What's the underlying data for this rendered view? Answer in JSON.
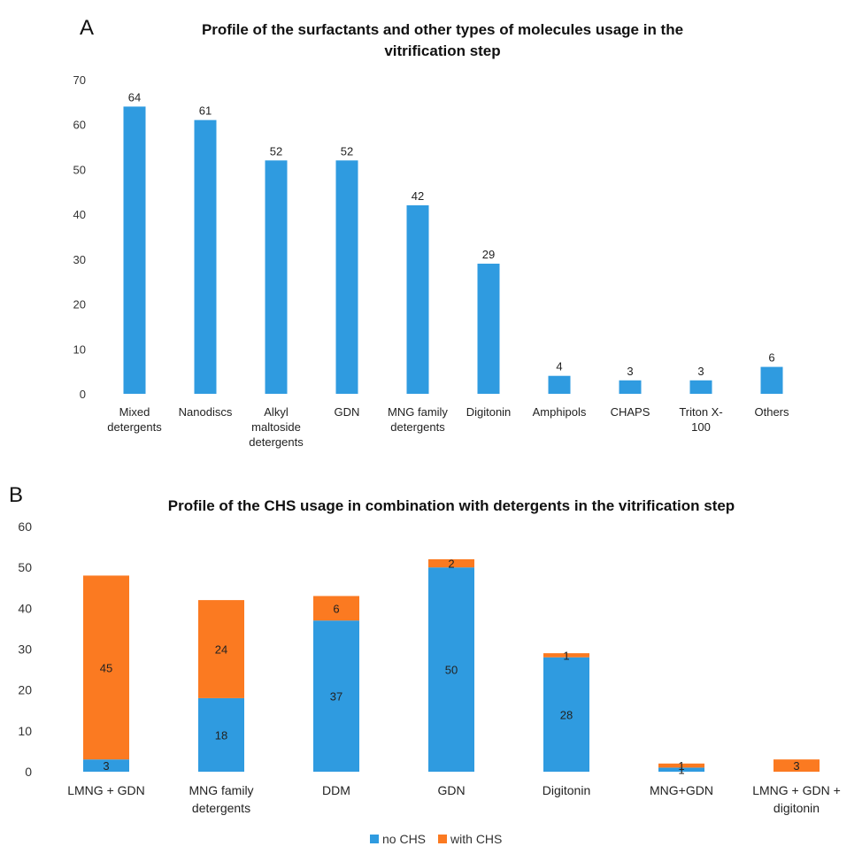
{
  "panels": {
    "a": "A",
    "b": "B"
  },
  "chart_data": [
    {
      "type": "bar",
      "title": "Profile of the surfactants and other types of molecules usage in the vitrification step",
      "title_lines": [
        "Profile of the surfactants and other types of molecules usage in the",
        "vitrification step"
      ],
      "categories": [
        [
          "Mixed",
          "detergents"
        ],
        [
          "Nanodiscs"
        ],
        [
          "Alkyl",
          "maltoside",
          "detergents"
        ],
        [
          "GDN"
        ],
        [
          "MNG family",
          "detergents"
        ],
        [
          "Digitonin"
        ],
        [
          "Amphipols"
        ],
        [
          "CHAPS"
        ],
        [
          "Triton X-",
          "100"
        ],
        [
          "Others"
        ]
      ],
      "values": [
        64,
        61,
        52,
        52,
        42,
        29,
        4,
        3,
        3,
        6
      ],
      "ylim": [
        0,
        70
      ],
      "yticks": [
        0,
        10,
        20,
        30,
        40,
        50,
        60,
        70
      ],
      "grid": false,
      "color": "#2f9be0"
    },
    {
      "type": "bar",
      "stacked": true,
      "title": "Profile of the CHS usage in combination with detergents in the vitrification step",
      "categories": [
        [
          "LMNG + GDN"
        ],
        [
          "MNG family",
          "detergents"
        ],
        [
          "DDM"
        ],
        [
          "GDN"
        ],
        [
          "Digitonin"
        ],
        [
          "MNG+GDN"
        ],
        [
          "LMNG + GDN +",
          "digitonin"
        ]
      ],
      "series": [
        {
          "name": "no CHS",
          "values": [
            3,
            18,
            37,
            50,
            28,
            1,
            0
          ],
          "labels": [
            "3",
            "18",
            "37",
            "50",
            "28",
            "1",
            ""
          ],
          "color": "#2f9be0"
        },
        {
          "name": "with CHS",
          "values": [
            45,
            24,
            6,
            2,
            1,
            1,
            3
          ],
          "labels": [
            "45",
            "24",
            "6",
            "2",
            "1",
            "1",
            "3"
          ],
          "color": "#fb7a21"
        }
      ],
      "ylim": [
        0,
        60
      ],
      "yticks": [
        0,
        10,
        20,
        30,
        40,
        50,
        60
      ],
      "grid": false,
      "legend": "bottom"
    }
  ]
}
